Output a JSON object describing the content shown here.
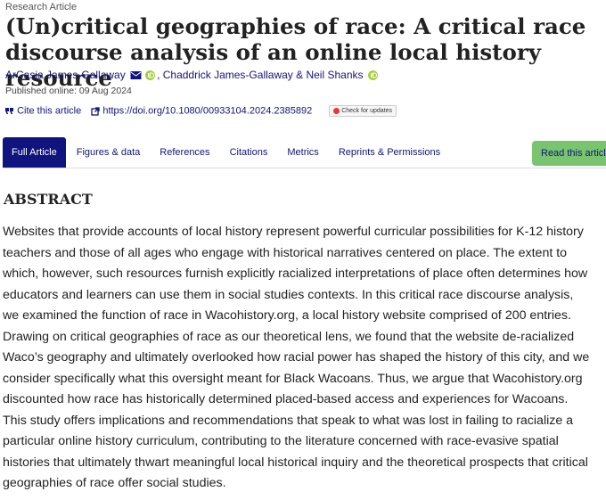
{
  "header": {
    "article_type": "Research Article",
    "title": "(Un)critical geographies of race: A critical race discourse analysis of an online local history resource",
    "authors": [
      "ArCasia James-Gallaway",
      "Chaddrick James-Gallaway",
      "Neil Shanks"
    ],
    "author_separators": [
      ", ",
      " & "
    ],
    "published": "Published online: 09 Aug 2024",
    "cite": "Cite this article",
    "doi": "https://doi.org/10.1080/00933104.2024.2385892",
    "updates": "Check for updates"
  },
  "tabs": [
    "Full Article",
    "Figures & data",
    "References",
    "Citations",
    "Metrics",
    "Reprints & Permissions"
  ],
  "read_button": "Read this article",
  "abstract": {
    "heading": "ABSTRACT",
    "text": "Websites that provide accounts of local history represent powerful curricular possibilities for K-12 history teachers and those of all ages who engage with historical narratives centered on place. The extent to which, however, such resources furnish explicitly racialized interpretations of place often determines how educators and learners can use them in social studies contexts. In this critical race discourse analysis, we examined the function of race in Wacohistory.org, a local history website comprised of 200 entries. Drawing on critical geographies of race as our theoretical lens, we found that the website de-racialized Waco’s geography and ultimately overlooked how racial power has shaped the history of this city, and we consider specifically what this oversight meant for Black Wacoans. Thus, we argue that Wacohistory.org discounted how race has historically determined placed-based access and experiences for Wacoans. This study offers implications and recommendations that speak to what was lost in failing to racialize a particular online history curriculum, contributing to the literature concerned with race-evasive spatial histories that ultimately thwart meaningful local historical inquiry and the theoretical prospects that critical geographies of race offer social studies."
  }
}
